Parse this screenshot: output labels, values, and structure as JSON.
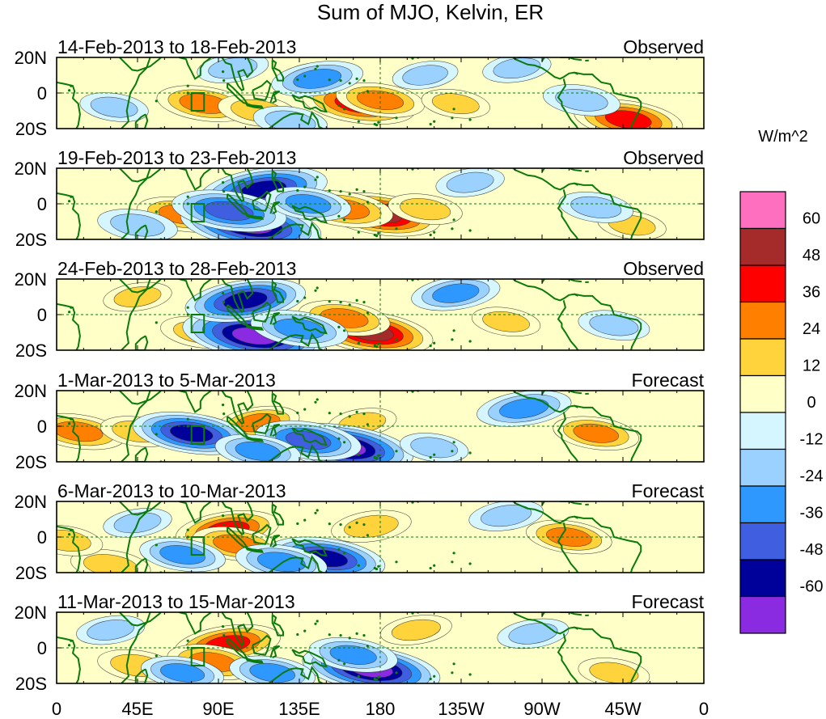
{
  "chart_data": {
    "type": "heatmap",
    "title": "Sum of MJO, Kelvin, ER",
    "units": "W/m^2",
    "x_ticks": [
      "0",
      "45E",
      "90E",
      "135E",
      "180",
      "135W",
      "90W",
      "45W",
      "0"
    ],
    "x_tick_lons": [
      0,
      45,
      90,
      135,
      180,
      225,
      270,
      315,
      360
    ],
    "y_ticks": [
      "20N",
      "0",
      "20S"
    ],
    "y_tick_lats": [
      20,
      0,
      -20
    ],
    "lon_range": [
      0,
      360
    ],
    "lat_range": [
      -20,
      20
    ],
    "colorbar": {
      "labels": [
        "60",
        "48",
        "36",
        "24",
        "12",
        "0",
        "-12",
        "-24",
        "-36",
        "-48",
        "-60"
      ],
      "levels": [
        60,
        48,
        36,
        24,
        12,
        0,
        -12,
        -24,
        -36,
        -48,
        -60
      ],
      "colors": [
        "#ff6fbf",
        "#a52a2a",
        "#ff0000",
        "#ff7f00",
        "#ffd33b",
        "#ffffc8",
        "#d6f6ff",
        "#9ad1ff",
        "#2f98ff",
        "#3f5fe0",
        "#00009a",
        "#8a2be2"
      ]
    },
    "panels": [
      {
        "period": "14-Feb-2013 to 18-Feb-2013",
        "kind": "Observed",
        "features": [
          {
            "lon": 168,
            "lat": -6,
            "value": 45
          },
          {
            "lon": 180,
            "lat": -4,
            "value": 28
          },
          {
            "lon": 318,
            "lat": -15,
            "value": 42
          },
          {
            "lon": 82,
            "lat": -6,
            "value": 32
          },
          {
            "lon": 112,
            "lat": -10,
            "value": 22
          },
          {
            "lon": 222,
            "lat": -6,
            "value": 14
          },
          {
            "lon": 145,
            "lat": 8,
            "value": -30
          },
          {
            "lon": 98,
            "lat": 14,
            "value": -16
          },
          {
            "lon": 130,
            "lat": -16,
            "value": -18
          },
          {
            "lon": 292,
            "lat": -4,
            "value": -20
          },
          {
            "lon": 256,
            "lat": 14,
            "value": -14
          },
          {
            "lon": 32,
            "lat": -8,
            "value": -14
          },
          {
            "lon": 205,
            "lat": 10,
            "value": -12
          }
        ]
      },
      {
        "period": "19-Feb-2013 to 23-Feb-2013",
        "kind": "Observed",
        "features": [
          {
            "lon": 180,
            "lat": -6,
            "value": 50
          },
          {
            "lon": 160,
            "lat": -3,
            "value": 34
          },
          {
            "lon": 70,
            "lat": -6,
            "value": 30
          },
          {
            "lon": 205,
            "lat": -3,
            "value": 18
          },
          {
            "lon": 320,
            "lat": -12,
            "value": 14
          },
          {
            "lon": 108,
            "lat": -12,
            "value": -64
          },
          {
            "lon": 115,
            "lat": 8,
            "value": -55
          },
          {
            "lon": 96,
            "lat": -4,
            "value": -46
          },
          {
            "lon": 140,
            "lat": 0,
            "value": -26
          },
          {
            "lon": 45,
            "lat": -12,
            "value": -22
          },
          {
            "lon": 300,
            "lat": -2,
            "value": -18
          },
          {
            "lon": 230,
            "lat": 12,
            "value": -14
          }
        ]
      },
      {
        "period": "24-Feb-2013 to 28-Feb-2013",
        "kind": "Observed",
        "features": [
          {
            "lon": 175,
            "lat": -10,
            "value": 52
          },
          {
            "lon": 160,
            "lat": -2,
            "value": 30
          },
          {
            "lon": 80,
            "lat": -10,
            "value": 22
          },
          {
            "lon": 45,
            "lat": 10,
            "value": 14
          },
          {
            "lon": 250,
            "lat": -4,
            "value": 14
          },
          {
            "lon": 110,
            "lat": -12,
            "value": -66
          },
          {
            "lon": 105,
            "lat": 8,
            "value": -50
          },
          {
            "lon": 135,
            "lat": -8,
            "value": -34
          },
          {
            "lon": 222,
            "lat": 12,
            "value": -28
          },
          {
            "lon": 310,
            "lat": -6,
            "value": -16
          }
        ]
      },
      {
        "period": "1-Mar-2013 to 5-Mar-2013",
        "kind": "Forecast",
        "features": [
          {
            "lon": 12,
            "lat": -3,
            "value": 32
          },
          {
            "lon": 45,
            "lat": -3,
            "value": 18
          },
          {
            "lon": 112,
            "lat": 2,
            "value": 24
          },
          {
            "lon": 170,
            "lat": 2,
            "value": 14
          },
          {
            "lon": 300,
            "lat": -4,
            "value": 26
          },
          {
            "lon": 160,
            "lat": -12,
            "value": -62
          },
          {
            "lon": 140,
            "lat": -8,
            "value": -40
          },
          {
            "lon": 75,
            "lat": -4,
            "value": -48
          },
          {
            "lon": 260,
            "lat": 10,
            "value": -32
          },
          {
            "lon": 112,
            "lat": -14,
            "value": -26
          },
          {
            "lon": 210,
            "lat": -12,
            "value": -14
          }
        ]
      },
      {
        "period": "6-Mar-2013 to 10-Mar-2013",
        "kind": "Forecast",
        "features": [
          {
            "lon": 95,
            "lat": 4,
            "value": 38
          },
          {
            "lon": 100,
            "lat": -4,
            "value": 28
          },
          {
            "lon": 175,
            "lat": 6,
            "value": 22
          },
          {
            "lon": 285,
            "lat": 0,
            "value": 26
          },
          {
            "lon": 30,
            "lat": -16,
            "value": 22
          },
          {
            "lon": 5,
            "lat": -2,
            "value": 18
          },
          {
            "lon": 150,
            "lat": -12,
            "value": -48
          },
          {
            "lon": 125,
            "lat": -14,
            "value": -30
          },
          {
            "lon": 70,
            "lat": -10,
            "value": -26
          },
          {
            "lon": 250,
            "lat": 12,
            "value": -18
          },
          {
            "lon": 45,
            "lat": 8,
            "value": -14
          }
        ]
      },
      {
        "period": "11-Mar-2013 to 15-Mar-2013",
        "kind": "Forecast",
        "features": [
          {
            "lon": 95,
            "lat": 2,
            "value": 40
          },
          {
            "lon": 87,
            "lat": -8,
            "value": 30
          },
          {
            "lon": 200,
            "lat": 10,
            "value": 16
          },
          {
            "lon": 310,
            "lat": -14,
            "value": 16
          },
          {
            "lon": 45,
            "lat": -10,
            "value": 22
          },
          {
            "lon": 175,
            "lat": -12,
            "value": -62
          },
          {
            "lon": 165,
            "lat": -4,
            "value": -28
          },
          {
            "lon": 120,
            "lat": -14,
            "value": -26
          },
          {
            "lon": 70,
            "lat": -14,
            "value": -24
          },
          {
            "lon": 265,
            "lat": 8,
            "value": -16
          },
          {
            "lon": 30,
            "lat": 10,
            "value": -14
          }
        ]
      }
    ]
  }
}
